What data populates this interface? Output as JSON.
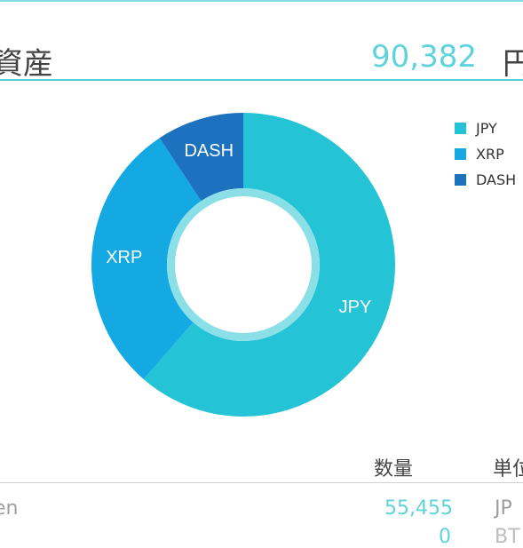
{
  "header": {
    "total_label": "資産",
    "total_value": "90,382",
    "total_unit": "円"
  },
  "chart_data": {
    "type": "pie",
    "categories": [
      "JPY",
      "XRP",
      "DASH"
    ],
    "values": [
      61.4,
      29.3,
      9.3
    ],
    "slice_labels": [
      "JPY",
      "XRP",
      "DASH"
    ],
    "legend": [
      "JPY",
      "XRP",
      "DASH"
    ],
    "legend_position": "top-right",
    "donut": true,
    "colors": [
      "#24c3d5",
      "#14a9e2",
      "#1d72bf"
    ],
    "inner_ring_color": "#8bdfe7"
  },
  "table": {
    "headers": [
      "数量",
      "単位"
    ],
    "rows": [
      {
        "name": "en",
        "quantity": "55,455",
        "unit": "JP"
      },
      {
        "name": "",
        "quantity": "0",
        "unit": "BT"
      }
    ]
  }
}
